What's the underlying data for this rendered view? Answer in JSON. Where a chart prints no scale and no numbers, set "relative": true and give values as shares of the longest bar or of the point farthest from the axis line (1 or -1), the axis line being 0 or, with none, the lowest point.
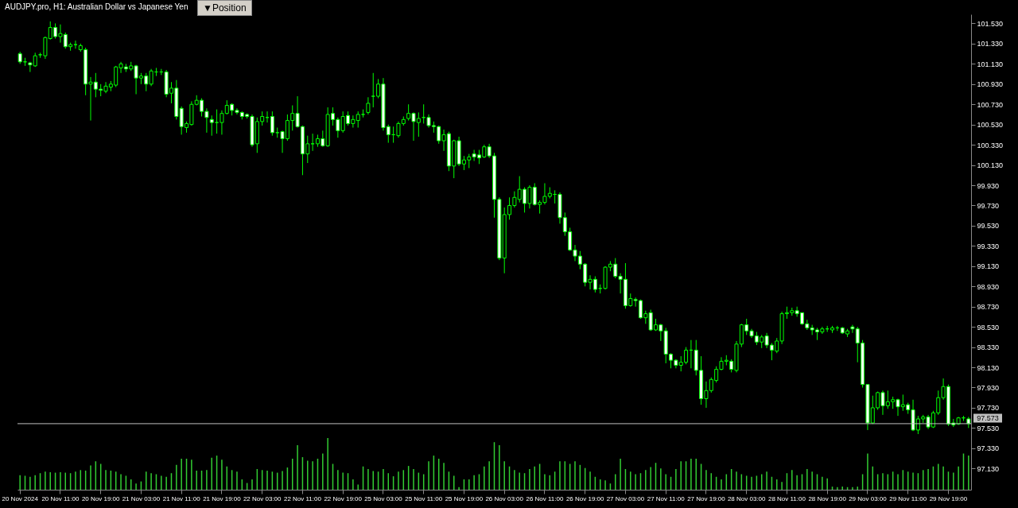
{
  "chart_data": [
    {
      "type": "candlestick",
      "title": "AUDJPY.pro, H1:  Australian Dollar vs Japanese Yen",
      "annotations": [
        "▼Position"
      ],
      "categories": [
        "20 Nov 2024",
        null,
        null,
        null,
        null,
        null,
        null,
        null,
        "20 Nov 11:00",
        null,
        null,
        null,
        null,
        null,
        null,
        null,
        "20 Nov 19:00",
        null,
        null,
        null,
        null,
        null,
        null,
        null,
        "21 Nov 03:00",
        null,
        null,
        null,
        null,
        null,
        null,
        null,
        "21 Nov 11:00",
        null,
        null,
        null,
        null,
        null,
        null,
        null,
        "21 Nov 19:00",
        null,
        null,
        null,
        null,
        null,
        null,
        null,
        "22 Nov 03:00",
        null,
        null,
        null,
        null,
        null,
        null,
        null,
        "22 Nov 11:00",
        null,
        null,
        null,
        null,
        null,
        null,
        null,
        "22 Nov 19:00",
        null,
        null,
        null,
        null,
        null,
        null,
        null,
        "25 Nov 03:00",
        null,
        null,
        null,
        null,
        null,
        null,
        null,
        "25 Nov 11:00",
        null,
        null,
        null,
        null,
        null,
        null,
        null,
        "25 Nov 19:00",
        null,
        null,
        null,
        null,
        null,
        null,
        null,
        "26 Nov 03:00",
        null,
        null,
        null,
        null,
        null,
        null,
        null,
        "26 Nov 11:00",
        null,
        null,
        null,
        null,
        null,
        null,
        null,
        "26 Nov 19:00",
        null,
        null,
        null,
        null,
        null,
        null,
        null,
        "27 Nov 03:00",
        null,
        null,
        null,
        null,
        null,
        null,
        null,
        "27 Nov 11:00",
        null,
        null,
        null,
        null,
        null,
        null,
        null,
        "27 Nov 19:00",
        null,
        null,
        null,
        null,
        null,
        null,
        null,
        "28 Nov 03:00",
        null,
        null,
        null,
        null,
        null,
        null,
        null,
        "28 Nov 11:00",
        null,
        null,
        null,
        null,
        null,
        null,
        null,
        "28 Nov 19:00",
        null,
        null,
        null,
        null,
        null,
        null,
        null,
        "29 Nov 03:00",
        null,
        null,
        null,
        null,
        null,
        null,
        null,
        "29 Nov 11:00",
        null,
        null,
        null,
        null,
        null,
        null,
        null,
        "29 Nov 19:00",
        null,
        null,
        null,
        null
      ],
      "ohlc": [
        [
          101.23,
          101.25,
          101.13,
          101.15
        ],
        [
          101.15,
          101.19,
          101.11,
          101.15
        ],
        [
          101.14,
          101.15,
          101.05,
          101.12
        ],
        [
          101.11,
          101.24,
          101.1,
          101.21
        ],
        [
          101.22,
          101.24,
          101.19,
          101.22
        ],
        [
          101.21,
          101.4,
          101.18,
          101.39
        ],
        [
          101.38,
          101.55,
          101.37,
          101.49
        ],
        [
          101.49,
          101.53,
          101.38,
          101.4
        ],
        [
          101.4,
          101.52,
          101.34,
          101.43
        ],
        [
          101.42,
          101.44,
          101.28,
          101.3
        ],
        [
          101.3,
          101.34,
          101.26,
          101.32
        ],
        [
          101.32,
          101.36,
          101.28,
          101.32
        ],
        [
          101.27,
          101.33,
          101.25,
          101.31
        ],
        [
          101.27,
          101.29,
          100.82,
          100.93
        ],
        [
          100.93,
          101.0,
          100.57,
          100.95
        ],
        [
          100.95,
          101.04,
          100.8,
          100.88
        ],
        [
          100.88,
          100.93,
          100.81,
          100.87
        ],
        [
          100.86,
          100.95,
          100.84,
          100.91
        ],
        [
          100.9,
          100.96,
          100.86,
          100.93
        ],
        [
          100.92,
          101.11,
          100.9,
          101.1
        ],
        [
          101.09,
          101.15,
          101.04,
          101.13
        ],
        [
          101.1,
          101.13,
          101.05,
          101.08
        ],
        [
          101.08,
          101.15,
          101.06,
          101.11
        ],
        [
          101.11,
          101.12,
          100.83,
          100.99
        ],
        [
          100.99,
          101.04,
          100.93,
          101.01
        ],
        [
          101.01,
          101.04,
          100.86,
          100.93
        ],
        [
          100.93,
          101.08,
          100.91,
          101.06
        ],
        [
          101.05,
          101.09,
          101.01,
          101.05
        ],
        [
          101.05,
          101.08,
          101.02,
          101.05
        ],
        [
          101.05,
          101.07,
          100.8,
          100.83
        ],
        [
          100.84,
          100.95,
          100.74,
          100.89
        ],
        [
          100.89,
          100.97,
          100.58,
          100.61
        ],
        [
          100.69,
          100.71,
          100.43,
          100.51
        ],
        [
          100.5,
          100.56,
          100.45,
          100.54
        ],
        [
          100.53,
          100.76,
          100.52,
          100.73
        ],
        [
          100.73,
          100.82,
          100.72,
          100.77
        ],
        [
          100.77,
          100.79,
          100.61,
          100.66
        ],
        [
          100.66,
          100.69,
          100.45,
          100.6
        ],
        [
          100.58,
          100.62,
          100.42,
          100.55
        ],
        [
          100.55,
          100.68,
          100.44,
          100.55
        ],
        [
          100.55,
          100.67,
          100.43,
          100.64
        ],
        [
          100.64,
          100.77,
          100.63,
          100.72
        ],
        [
          100.73,
          100.74,
          100.62,
          100.67
        ],
        [
          100.67,
          100.69,
          100.63,
          100.65
        ],
        [
          100.65,
          100.66,
          100.58,
          100.61
        ],
        [
          100.63,
          100.64,
          100.59,
          100.61
        ],
        [
          100.61,
          100.63,
          100.31,
          100.33
        ],
        [
          100.34,
          100.6,
          100.25,
          100.56
        ],
        [
          100.56,
          100.66,
          100.52,
          100.61
        ],
        [
          100.6,
          100.66,
          100.55,
          100.6
        ],
        [
          100.61,
          100.66,
          100.42,
          100.45
        ],
        [
          100.45,
          100.5,
          100.4,
          100.45
        ],
        [
          100.46,
          100.47,
          100.25,
          100.39
        ],
        [
          100.39,
          100.63,
          100.37,
          100.57
        ],
        [
          100.57,
          100.72,
          100.47,
          100.64
        ],
        [
          100.64,
          100.81,
          100.5,
          100.51
        ],
        [
          100.51,
          100.52,
          100.03,
          100.24
        ],
        [
          100.24,
          100.42,
          100.15,
          100.34
        ],
        [
          100.34,
          100.44,
          100.27,
          100.34
        ],
        [
          100.34,
          100.43,
          100.31,
          100.39
        ],
        [
          100.39,
          100.47,
          100.31,
          100.32
        ],
        [
          100.32,
          100.7,
          100.31,
          100.63
        ],
        [
          100.64,
          100.7,
          100.52,
          100.58
        ],
        [
          100.58,
          100.6,
          100.4,
          100.47
        ],
        [
          100.47,
          100.66,
          100.45,
          100.61
        ],
        [
          100.62,
          100.66,
          100.52,
          100.54
        ],
        [
          100.54,
          100.62,
          100.5,
          100.58
        ],
        [
          100.57,
          100.66,
          100.5,
          100.63
        ],
        [
          100.63,
          100.68,
          100.6,
          100.63
        ],
        [
          100.65,
          100.8,
          100.63,
          100.74
        ],
        [
          100.81,
          101.04,
          100.7,
          100.81
        ],
        [
          100.81,
          100.98,
          100.79,
          100.93
        ],
        [
          100.93,
          100.99,
          100.47,
          100.5
        ],
        [
          100.51,
          100.53,
          100.35,
          100.43
        ],
        [
          100.43,
          100.51,
          100.35,
          100.43
        ],
        [
          100.42,
          100.56,
          100.4,
          100.54
        ],
        [
          100.54,
          100.61,
          100.52,
          100.58
        ],
        [
          100.59,
          100.73,
          100.57,
          100.64
        ],
        [
          100.64,
          100.65,
          100.37,
          100.56
        ],
        [
          100.55,
          100.65,
          100.41,
          100.59
        ],
        [
          100.6,
          100.73,
          100.54,
          100.6
        ],
        [
          100.6,
          100.63,
          100.5,
          100.52
        ],
        [
          100.52,
          100.56,
          100.45,
          100.51
        ],
        [
          100.51,
          100.52,
          100.34,
          100.37
        ],
        [
          100.37,
          100.48,
          100.27,
          100.43
        ],
        [
          100.44,
          100.46,
          100.07,
          100.12
        ],
        [
          100.12,
          100.38,
          100.0,
          100.37
        ],
        [
          100.37,
          100.41,
          100.12,
          100.14
        ],
        [
          100.14,
          100.22,
          100.08,
          100.18
        ],
        [
          100.18,
          100.24,
          100.1,
          100.21
        ],
        [
          100.24,
          100.28,
          100.17,
          100.21
        ],
        [
          100.23,
          100.28,
          100.14,
          100.2
        ],
        [
          100.21,
          100.33,
          100.2,
          100.31
        ],
        [
          100.31,
          100.34,
          100.2,
          100.22
        ],
        [
          100.22,
          100.25,
          99.61,
          99.79
        ],
        [
          99.79,
          99.81,
          99.19,
          99.21
        ],
        [
          99.21,
          99.71,
          99.06,
          99.64
        ],
        [
          99.64,
          99.81,
          99.59,
          99.73
        ],
        [
          99.73,
          99.87,
          99.71,
          99.81
        ],
        [
          99.79,
          100.02,
          99.76,
          99.89
        ],
        [
          99.89,
          99.91,
          99.66,
          99.75
        ],
        [
          99.75,
          99.93,
          99.7,
          99.91
        ],
        [
          99.91,
          99.95,
          99.73,
          99.74
        ],
        [
          99.74,
          99.78,
          99.65,
          99.76
        ],
        [
          99.76,
          99.95,
          99.74,
          99.82
        ],
        [
          99.82,
          99.91,
          99.8,
          99.85
        ],
        [
          99.84,
          99.88,
          99.75,
          99.84
        ],
        [
          99.84,
          99.86,
          99.55,
          99.61
        ],
        [
          99.61,
          99.66,
          99.43,
          99.47
        ],
        [
          99.47,
          99.51,
          99.28,
          99.29
        ],
        [
          99.29,
          99.34,
          99.18,
          99.23
        ],
        [
          99.23,
          99.28,
          99.1,
          99.15
        ],
        [
          99.15,
          99.16,
          98.93,
          98.97
        ],
        [
          98.97,
          99.04,
          98.9,
          99.0
        ],
        [
          99.0,
          99.03,
          98.87,
          98.9
        ],
        [
          98.91,
          98.95,
          98.86,
          98.91
        ],
        [
          98.91,
          99.13,
          98.9,
          99.12
        ],
        [
          99.12,
          99.18,
          99.08,
          99.15
        ],
        [
          99.15,
          99.21,
          99.01,
          99.03
        ],
        [
          99.03,
          99.06,
          98.86,
          99.0
        ],
        [
          99.0,
          99.16,
          98.71,
          98.74
        ],
        [
          98.74,
          98.86,
          98.73,
          98.81
        ],
        [
          98.8,
          98.82,
          98.73,
          98.79
        ],
        [
          98.79,
          98.8,
          98.61,
          98.62
        ],
        [
          98.62,
          98.69,
          98.56,
          98.66
        ],
        [
          98.67,
          98.7,
          98.49,
          98.5
        ],
        [
          98.5,
          98.61,
          98.49,
          98.55
        ],
        [
          98.55,
          98.56,
          98.39,
          98.49
        ],
        [
          98.49,
          98.52,
          98.17,
          98.26
        ],
        [
          98.26,
          98.27,
          98.12,
          98.2
        ],
        [
          98.2,
          98.21,
          98.12,
          98.15
        ],
        [
          98.15,
          98.24,
          98.09,
          98.18
        ],
        [
          98.18,
          98.33,
          98.16,
          98.3
        ],
        [
          98.3,
          98.4,
          98.12,
          98.3
        ],
        [
          98.3,
          98.4,
          98.05,
          98.1
        ],
        [
          98.1,
          98.24,
          97.76,
          97.82
        ],
        [
          97.82,
          97.99,
          97.73,
          97.9
        ],
        [
          97.9,
          98.03,
          97.88,
          98.01
        ],
        [
          98.0,
          98.14,
          97.98,
          98.11
        ],
        [
          98.11,
          98.23,
          98.1,
          98.19
        ],
        [
          98.19,
          98.25,
          98.15,
          98.2
        ],
        [
          98.19,
          98.21,
          98.08,
          98.11
        ],
        [
          98.1,
          98.39,
          98.08,
          98.36
        ],
        [
          98.36,
          98.56,
          98.33,
          98.55
        ],
        [
          98.55,
          98.61,
          98.45,
          98.49
        ],
        [
          98.49,
          98.51,
          98.42,
          98.44
        ],
        [
          98.44,
          98.48,
          98.35,
          98.38
        ],
        [
          98.38,
          98.45,
          98.32,
          98.43
        ],
        [
          98.44,
          98.47,
          98.32,
          98.35
        ],
        [
          98.35,
          98.37,
          98.2,
          98.3
        ],
        [
          98.29,
          98.42,
          98.27,
          98.39
        ],
        [
          98.39,
          98.68,
          98.36,
          98.66
        ],
        [
          98.66,
          98.73,
          98.61,
          98.67
        ],
        [
          98.67,
          98.72,
          98.64,
          98.69
        ],
        [
          98.69,
          98.73,
          98.63,
          98.66
        ],
        [
          98.67,
          98.67,
          98.55,
          98.56
        ],
        [
          98.56,
          98.6,
          98.5,
          98.52
        ],
        [
          98.52,
          98.55,
          98.45,
          98.5
        ],
        [
          98.5,
          98.52,
          98.4,
          98.48
        ],
        [
          98.48,
          98.53,
          98.46,
          98.51
        ],
        [
          98.51,
          98.54,
          98.48,
          98.51
        ],
        [
          98.5,
          98.54,
          98.47,
          98.52
        ],
        [
          98.52,
          98.54,
          98.49,
          98.52
        ],
        [
          98.52,
          98.53,
          98.46,
          98.47
        ],
        [
          98.46,
          98.51,
          98.43,
          98.49
        ],
        [
          98.53,
          98.55,
          98.47,
          98.51
        ],
        [
          98.51,
          98.53,
          98.18,
          98.37
        ],
        [
          98.37,
          98.4,
          97.93,
          97.96
        ],
        [
          97.96,
          97.96,
          97.51,
          97.58
        ],
        [
          97.58,
          97.85,
          97.57,
          97.73
        ],
        [
          97.73,
          97.89,
          97.71,
          97.88
        ],
        [
          97.88,
          97.9,
          97.66,
          97.75
        ],
        [
          97.75,
          97.9,
          97.72,
          97.79
        ],
        [
          97.79,
          97.84,
          97.72,
          97.81
        ],
        [
          97.81,
          97.82,
          97.65,
          97.74
        ],
        [
          97.74,
          97.86,
          97.7,
          97.76
        ],
        [
          97.76,
          97.78,
          97.67,
          97.71
        ],
        [
          97.71,
          97.81,
          97.5,
          97.51
        ],
        [
          97.51,
          97.65,
          97.47,
          97.62
        ],
        [
          97.62,
          97.66,
          97.58,
          97.64
        ],
        [
          97.64,
          97.66,
          97.52,
          97.54
        ],
        [
          97.54,
          97.7,
          97.53,
          97.68
        ],
        [
          97.68,
          97.9,
          97.66,
          97.83
        ],
        [
          97.83,
          98.02,
          97.81,
          97.94
        ],
        [
          97.94,
          97.96,
          97.55,
          97.57
        ],
        [
          97.58,
          97.62,
          97.54,
          97.56
        ],
        [
          97.57,
          97.64,
          97.56,
          97.63
        ],
        [
          97.63,
          97.65,
          97.6,
          97.63
        ],
        [
          97.62,
          97.64,
          97.53,
          97.573
        ]
      ],
      "ylim": [
        96.92,
        101.62
      ],
      "yticks": [
        {
          "value": 97.13,
          "label": "97.130"
        },
        {
          "value": 97.33,
          "label": "97.330"
        },
        {
          "value": 97.53,
          "label": "97.530"
        },
        {
          "value": 97.73,
          "label": "97.730"
        },
        {
          "value": 97.93,
          "label": "97.930"
        },
        {
          "value": 98.13,
          "label": "98.130"
        },
        {
          "value": 98.33,
          "label": "98.330"
        },
        {
          "value": 98.53,
          "label": "98.530"
        },
        {
          "value": 98.73,
          "label": "98.730"
        },
        {
          "value": 98.93,
          "label": "98.930"
        },
        {
          "value": 99.13,
          "label": "99.130"
        },
        {
          "value": 99.33,
          "label": "99.330"
        },
        {
          "value": 99.53,
          "label": "99.530"
        },
        {
          "value": 99.73,
          "label": "99.730"
        },
        {
          "value": 99.93,
          "label": "99.930"
        },
        {
          "value": 100.13,
          "label": "100.130"
        },
        {
          "value": 100.33,
          "label": "100.330"
        },
        {
          "value": 100.53,
          "label": "100.530"
        },
        {
          "value": 100.73,
          "label": "100.730"
        },
        {
          "value": 100.93,
          "label": "100.930"
        },
        {
          "value": 101.13,
          "label": "101.130"
        },
        {
          "value": 101.33,
          "label": "101.330"
        },
        {
          "value": 101.53,
          "label": "101.530"
        }
      ],
      "ref_lines": [
        {
          "axis": "y",
          "value": 97.573,
          "label": "97.573",
          "color": "#c0c0c0"
        }
      ]
    },
    {
      "type": "bar",
      "relative": true,
      "color": "#32cd32",
      "categories": [
        null,
        null,
        null,
        null,
        null,
        null,
        null,
        null,
        null,
        null,
        null,
        null,
        null,
        null,
        null,
        null,
        null,
        null,
        null,
        null,
        null,
        null,
        null,
        null,
        null,
        null,
        null,
        null,
        null,
        null,
        null,
        null,
        null,
        null,
        null,
        null,
        null,
        null,
        null,
        null,
        null,
        null,
        null,
        null,
        null,
        null,
        null,
        null,
        null,
        null,
        null,
        null,
        null,
        null,
        null,
        null,
        null,
        null,
        null,
        null,
        null,
        null,
        null,
        null,
        null,
        null,
        null,
        null,
        null,
        null,
        null,
        null,
        null,
        null,
        null,
        null,
        null,
        null,
        null,
        null,
        null,
        null,
        null,
        null,
        null,
        null,
        null,
        null,
        null,
        null,
        null,
        null,
        null,
        null,
        null,
        null,
        null,
        null,
        null,
        null,
        null,
        null,
        null,
        null,
        null,
        null,
        null,
        null,
        null,
        null,
        null,
        null,
        null,
        null,
        null,
        null,
        null,
        null,
        null,
        null,
        null,
        null,
        null,
        null,
        null,
        null,
        null,
        null,
        null,
        null,
        null,
        null,
        null,
        null,
        null,
        null,
        null,
        null,
        null,
        null,
        null,
        null,
        null,
        null,
        null,
        null,
        null,
        null,
        null,
        null,
        null,
        null,
        null,
        null,
        null,
        null,
        null,
        null,
        null,
        null,
        null,
        null,
        null,
        null,
        null,
        null,
        null,
        null,
        null,
        null,
        null,
        null,
        null,
        null,
        null,
        null,
        null,
        null,
        null,
        null,
        null,
        null,
        null,
        null,
        null,
        null,
        null,
        null,
        null
      ],
      "values": [
        0.28,
        0.27,
        0.25,
        0.28,
        0.32,
        0.35,
        0.34,
        0.33,
        0.34,
        0.33,
        0.32,
        0.35,
        0.38,
        0.37,
        0.47,
        0.55,
        0.5,
        0.38,
        0.37,
        0.35,
        0.3,
        0.27,
        0.2,
        0.12,
        0.16,
        0.35,
        0.32,
        0.3,
        0.27,
        0.25,
        0.32,
        0.48,
        0.6,
        0.6,
        0.58,
        0.37,
        0.37,
        0.38,
        0.62,
        0.66,
        0.58,
        0.45,
        0.38,
        0.35,
        0.2,
        0.13,
        0.2,
        0.4,
        0.38,
        0.37,
        0.35,
        0.33,
        0.36,
        0.43,
        0.6,
        0.86,
        0.63,
        0.56,
        0.55,
        0.6,
        0.7,
        1,
        0.5,
        0.38,
        0.33,
        0.32,
        0.2,
        0.1,
        0.45,
        0.4,
        0.36,
        0.35,
        0.4,
        0.32,
        0.26,
        0.35,
        0.38,
        0.46,
        0.4,
        0.33,
        0.3,
        0.55,
        0.66,
        0.6,
        0.52,
        0.35,
        0.27,
        0.05,
        0.2,
        0.2,
        0.28,
        0.3,
        0.45,
        0.55,
        0.92,
        0.86,
        0.55,
        0.45,
        0.38,
        0.33,
        0.32,
        0.4,
        0.45,
        0.5,
        0.3,
        0.28,
        0.35,
        0.55,
        0.55,
        0.5,
        0.55,
        0.48,
        0.42,
        0.35,
        0.25,
        0.2,
        0.18,
        0.12,
        0.3,
        0.6,
        0.4,
        0.35,
        0.3,
        0.32,
        0.38,
        0.44,
        0.52,
        0.41,
        0.3,
        0.25,
        0.4,
        0.55,
        0.55,
        0.6,
        0.6,
        0.5,
        0.38,
        0.32,
        0.25,
        0.2,
        0.3,
        0.4,
        0.35,
        0.3,
        0.27,
        0.25,
        0.27,
        0.3,
        0.35,
        0.25,
        0.2,
        0.15,
        0.32,
        0.38,
        0.28,
        0.3,
        0.4,
        0.35,
        0.3,
        0.25,
        0.22,
        0.06,
        0.05,
        0.06,
        0.05,
        0.05,
        0.06,
        0.3,
        0.7,
        0.45,
        0.3,
        0.32,
        0.3,
        0.35,
        0.3,
        0.38,
        0.35,
        0.33,
        0.32,
        0.38,
        0.4,
        0.45,
        0.5,
        0.45,
        0.35,
        0.33,
        0.45,
        0.7,
        0.66
      ]
    }
  ]
}
